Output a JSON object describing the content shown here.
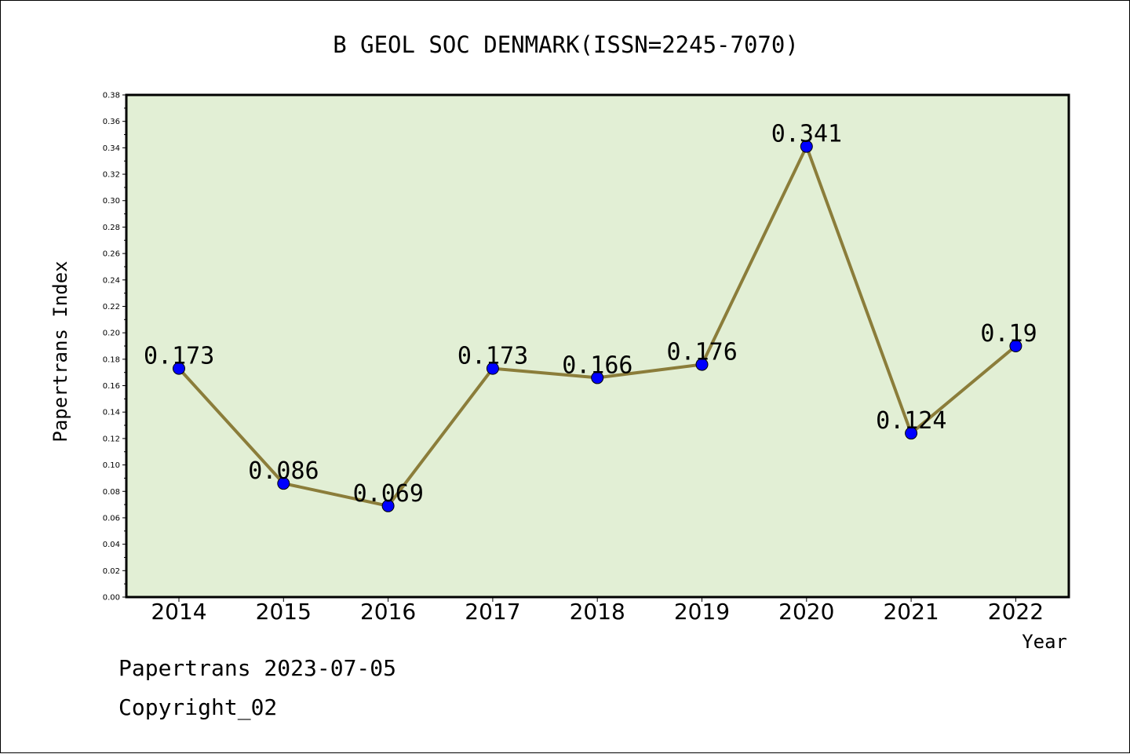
{
  "footer": {
    "line1": "Papertrans 2023-07-05",
    "line2": "Copyright_02"
  },
  "chart_data": {
    "type": "line",
    "title": "B GEOL SOC DENMARK(ISSN=2245-7070)",
    "xlabel": "Year",
    "ylabel": "Papertrans Index",
    "categories": [
      "2014",
      "2015",
      "2016",
      "2017",
      "2018",
      "2019",
      "2020",
      "2021",
      "2022"
    ],
    "series": [
      {
        "values": [
          0.173,
          0.086,
          0.069,
          0.173,
          0.166,
          0.176,
          0.341,
          0.124,
          0.19
        ]
      }
    ],
    "data_labels": [
      "0.173",
      "0.086",
      "0.069",
      "0.173",
      "0.166",
      "0.176",
      "0.341",
      "0.124",
      "0.19"
    ],
    "ylim": [
      0,
      0.38
    ],
    "yticks": [
      "0.00",
      "0.02",
      "0.04",
      "0.06",
      "0.08",
      "0.10",
      "0.12",
      "0.14",
      "0.16",
      "0.18",
      "0.20",
      "0.22",
      "0.24",
      "0.26",
      "0.28",
      "0.30",
      "0.32",
      "0.34",
      "0.36",
      "0.38"
    ],
    "grid": false,
    "colors": {
      "plot_background": "#e2efd5",
      "line": "#8b7d3a",
      "marker": "#0000ff"
    }
  }
}
